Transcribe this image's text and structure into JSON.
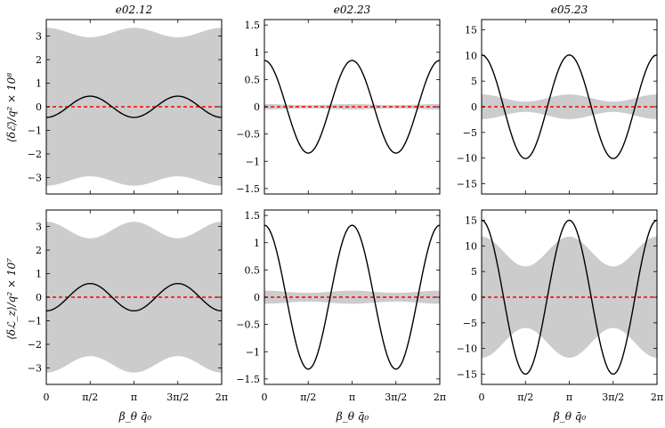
{
  "figure": {
    "ylabels": [
      "⟨δℰ⟩/q² × 10⁸",
      "⟨δℒ_z⟩/q² × 10⁷"
    ],
    "xlabel": "β_θ q̄₀",
    "xtick_labels": [
      "0",
      "π/2",
      "π",
      "3π/2",
      "2π"
    ]
  },
  "colors": {
    "envelope": "#cccccc",
    "curve": "#000000",
    "mean_line": "#ff0000"
  },
  "chart_data": [
    {
      "type": "area",
      "title": "e02.12",
      "row": 0,
      "col": 0,
      "xlim": [
        0,
        6.2832
      ],
      "ylim": [
        -3.7,
        3.7
      ],
      "yticks": [
        -3,
        -2,
        -1,
        0,
        1,
        2,
        3
      ],
      "ytick_labels": [
        "−3",
        "−2",
        "−1",
        "0",
        "1",
        "2",
        "3"
      ],
      "curve": {
        "kind": "cos",
        "amplitude": 0.45,
        "phase": 3.1416
      },
      "envelope": {
        "upper_base": 3.15,
        "upper_amp": 0.2,
        "lower_base": -3.15,
        "lower_amp": 0.2
      },
      "mean_line": 0
    },
    {
      "type": "area",
      "title": "e02.23",
      "row": 0,
      "col": 1,
      "xlim": [
        0,
        6.2832
      ],
      "ylim": [
        -1.6,
        1.6
      ],
      "yticks": [
        -1.5,
        -1,
        -0.5,
        0,
        0.5,
        1,
        1.5
      ],
      "ytick_labels": [
        "−1.5",
        "−1",
        "−0.5",
        "0",
        "0.5",
        "1",
        "1.5"
      ],
      "curve": {
        "kind": "cos",
        "amplitude": 0.85,
        "phase": 0
      },
      "envelope": {
        "upper_base": 0.04,
        "upper_amp": 0.01,
        "lower_base": -0.04,
        "lower_amp": 0.01
      },
      "mean_line": 0
    },
    {
      "type": "area",
      "title": "e05.23",
      "row": 0,
      "col": 2,
      "xlim": [
        0,
        6.2832
      ],
      "ylim": [
        -17,
        17
      ],
      "yticks": [
        -15,
        -10,
        -5,
        0,
        5,
        10,
        15
      ],
      "ytick_labels": [
        "−15",
        "−10",
        "−5",
        "0",
        "5",
        "10",
        "15"
      ],
      "curve": {
        "kind": "cos",
        "amplitude": 10.1,
        "phase": 0
      },
      "envelope": {
        "upper_base": 1.7,
        "upper_amp": 0.7,
        "lower_base": -1.7,
        "lower_amp": 0.7
      },
      "mean_line": 0
    },
    {
      "type": "area",
      "title": "",
      "row": 1,
      "col": 0,
      "xlim": [
        0,
        6.2832
      ],
      "ylim": [
        -3.7,
        3.7
      ],
      "yticks": [
        -3,
        -2,
        -1,
        0,
        1,
        2,
        3
      ],
      "ytick_labels": [
        "−3",
        "−2",
        "−1",
        "0",
        "1",
        "2",
        "3"
      ],
      "curve": {
        "kind": "cos",
        "amplitude": 0.58,
        "phase": 3.1416
      },
      "envelope": {
        "upper_base": 2.85,
        "upper_amp": 0.35,
        "lower_base": -2.85,
        "lower_amp": 0.35
      },
      "mean_line": 0
    },
    {
      "type": "area",
      "title": "",
      "row": 1,
      "col": 1,
      "xlim": [
        0,
        6.2832
      ],
      "ylim": [
        -1.6,
        1.6
      ],
      "yticks": [
        -1.5,
        -1,
        -0.5,
        0,
        0.5,
        1,
        1.5
      ],
      "ytick_labels": [
        "−1.5",
        "−1",
        "−0.5",
        "0",
        "0.5",
        "1",
        "1.5"
      ],
      "curve": {
        "kind": "cos",
        "amplitude": 1.32,
        "phase": 0
      },
      "envelope": {
        "upper_base": 0.1,
        "upper_amp": 0.02,
        "lower_base": -0.1,
        "lower_amp": 0.02
      },
      "mean_line": 0
    },
    {
      "type": "area",
      "title": "",
      "row": 1,
      "col": 2,
      "xlim": [
        0,
        6.2832
      ],
      "ylim": [
        -17,
        17
      ],
      "yticks": [
        -15,
        -10,
        -5,
        0,
        5,
        10,
        15
      ],
      "ytick_labels": [
        "−15",
        "−10",
        "−5",
        "0",
        "5",
        "10",
        "15"
      ],
      "curve": {
        "kind": "cos",
        "amplitude": 15,
        "phase": 0
      },
      "envelope": {
        "upper_base": 8.9,
        "upper_amp": 2.9,
        "lower_base": -8.9,
        "lower_amp": 2.9
      },
      "mean_line": 0
    }
  ]
}
